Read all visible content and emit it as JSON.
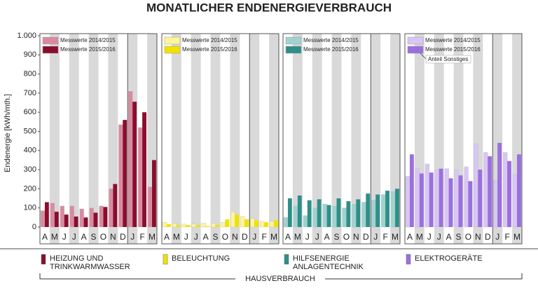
{
  "title": "MONATLICHER ENDENERGIEVERBRAUCH",
  "chart_data": [
    {
      "type": "bar",
      "ylabel": "Endenergie [kWh/mth.]",
      "ylim": [
        0,
        1000
      ],
      "yticks": [
        0,
        100,
        200,
        300,
        400,
        500,
        600,
        700,
        800,
        900,
        {
          "value": 1000,
          "label": "1.000"
        }
      ],
      "categories": [
        "A",
        "M",
        "J",
        "J",
        "A",
        "S",
        "O",
        "N",
        "D",
        "J",
        "F",
        "M"
      ],
      "series": [
        {
          "name": "Messwerte 2014/2015",
          "color": "#d98aa0",
          "values": [
            85,
            125,
            110,
            110,
            95,
            100,
            110,
            200,
            535,
            710,
            520,
            210
          ]
        },
        {
          "name": "Messwerte 2015/2016",
          "color": "#8b0d2e",
          "values": [
            130,
            80,
            65,
            55,
            50,
            75,
            105,
            225,
            560,
            655,
            600,
            350
          ]
        }
      ]
    },
    {
      "type": "bar",
      "categories": [
        "A",
        "M",
        "J",
        "J",
        "A",
        "S",
        "O",
        "N",
        "D",
        "J",
        "F",
        "M"
      ],
      "series": [
        {
          "name": "Messwerte 2014/2015",
          "color": "#fff59a",
          "values": [
            25,
            20,
            15,
            15,
            20,
            20,
            25,
            80,
            55,
            45,
            30,
            30
          ]
        },
        {
          "name": "Messwerte 2015/2016",
          "color": "#f2e200",
          "values": [
            15,
            10,
            10,
            10,
            5,
            10,
            40,
            65,
            40,
            35,
            25,
            35
          ]
        }
      ]
    },
    {
      "type": "bar",
      "categories": [
        "A",
        "M",
        "J",
        "J",
        "A",
        "S",
        "O",
        "N",
        "D",
        "J",
        "F",
        "M"
      ],
      "series": [
        {
          "name": "Messwerte 2014/2015",
          "color": "#9fd3cf",
          "values": [
            50,
            110,
            60,
            100,
            120,
            110,
            100,
            120,
            130,
            140,
            170,
            185
          ]
        },
        {
          "name": "Messwerte 2015/2016",
          "color": "#2e8f89",
          "values": [
            150,
            165,
            140,
            145,
            115,
            150,
            135,
            145,
            175,
            170,
            190,
            200
          ]
        }
      ]
    },
    {
      "type": "bar",
      "annotation": "Anteil Sonstiges",
      "categories": [
        "A",
        "M",
        "J",
        "J",
        "A",
        "S",
        "O",
        "N",
        "D",
        "J",
        "F",
        "M"
      ],
      "series": [
        {
          "name": "Messwerte 2014/2015",
          "color": "#d8c6f5",
          "values": [
            265,
            305,
            330,
            300,
            305,
            300,
            315,
            435,
            390,
            245,
            390,
            275
          ]
        },
        {
          "name": "Messwerte 2015/2016",
          "color": "#9b6fe0",
          "values": [
            380,
            280,
            285,
            305,
            255,
            270,
            240,
            300,
            370,
            440,
            345,
            380
          ]
        }
      ]
    }
  ],
  "footer": {
    "items": [
      [
        "HEIZUNG UND",
        "TRINKWARMWASSER"
      ],
      [
        "BELEUCHTUNG"
      ],
      [
        "HILFSENERGIE",
        "ANLAGENTECHNIK"
      ],
      [
        "ELEKTROGERÄTE"
      ]
    ],
    "group_label": "HAUSVERBRAUCH"
  }
}
